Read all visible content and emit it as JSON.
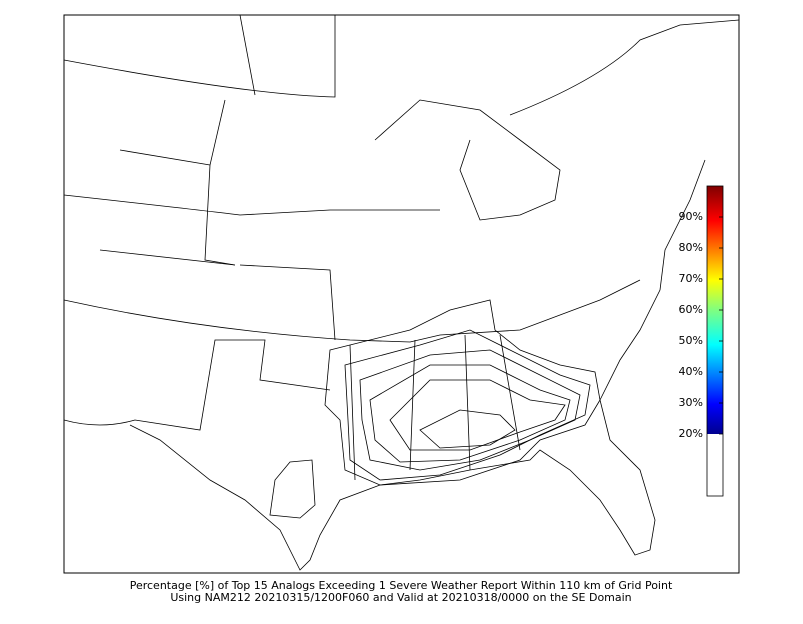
{
  "caption": {
    "line1": "Percentage [%] of Top 15 Analogs Exceeding 1 Severe Weather Report Within 110 km of Grid Point",
    "line2": "Using NAM212 20210315/1200F060 and Valid at 20210318/0000 on the SE Domain"
  },
  "colorbar": {
    "range": [
      0,
      100
    ],
    "ticks": [
      {
        "value": 20,
        "label": "20%"
      },
      {
        "value": 30,
        "label": "30%"
      },
      {
        "value": 40,
        "label": "40%"
      },
      {
        "value": 50,
        "label": "50%"
      },
      {
        "value": 60,
        "label": "60%"
      },
      {
        "value": 70,
        "label": "70%"
      },
      {
        "value": 80,
        "label": "80%"
      },
      {
        "value": 90,
        "label": "90%"
      }
    ]
  }
}
